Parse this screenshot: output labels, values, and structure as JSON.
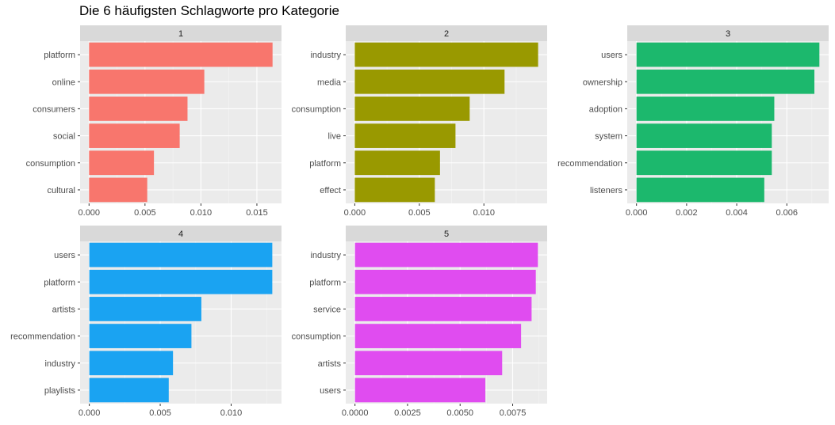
{
  "title": "Die 6 häufigsten Schlagworte pro Kategorie",
  "chart_data": {
    "type": "bar",
    "orientation": "horizontal",
    "facet_layout": "3 columns x 2 rows",
    "grid": true,
    "legend": "none",
    "panels": [
      {
        "label": "1",
        "color": "#F8766D",
        "categories": [
          "platform",
          "online",
          "consumers",
          "social",
          "consumption",
          "cultural"
        ],
        "values": [
          0.0164,
          0.0103,
          0.0088,
          0.0081,
          0.0058,
          0.0052
        ],
        "xlim": [
          -0.0008,
          0.0172
        ],
        "xticks": [
          0,
          0.005,
          0.01,
          0.015
        ],
        "xtick_labels": [
          "0.000",
          "0.005",
          "0.010",
          "0.015"
        ]
      },
      {
        "label": "2",
        "color": "#999900",
        "categories": [
          "industry",
          "media",
          "consumption",
          "live",
          "platform",
          "effect"
        ],
        "values": [
          0.0142,
          0.0116,
          0.0089,
          0.0078,
          0.0066,
          0.0062
        ],
        "xlim": [
          -0.0007,
          0.0149
        ],
        "xticks": [
          0,
          0.005,
          0.01
        ],
        "xtick_labels": [
          "0.000",
          "0.005",
          "0.010"
        ]
      },
      {
        "label": "3",
        "color": "#1CB86D",
        "categories": [
          "users",
          "ownership",
          "adoption",
          "system",
          "recommendation",
          "listeners"
        ],
        "values": [
          0.0073,
          0.0071,
          0.0055,
          0.0054,
          0.0054,
          0.0051
        ],
        "xlim": [
          -0.00037,
          0.00767
        ],
        "xticks": [
          0,
          0.002,
          0.004,
          0.006
        ],
        "xtick_labels": [
          "0.000",
          "0.002",
          "0.004",
          "0.006"
        ]
      },
      {
        "label": "4",
        "color": "#1AA3F2",
        "categories": [
          "users",
          "platform",
          "artists",
          "recommendation",
          "industry",
          "playlists"
        ],
        "values": [
          0.0129,
          0.0129,
          0.0079,
          0.0072,
          0.0059,
          0.0056
        ],
        "xlim": [
          -0.00065,
          0.01355
        ],
        "xticks": [
          0,
          0.005,
          0.01
        ],
        "xtick_labels": [
          "0.000",
          "0.005",
          "0.010"
        ]
      },
      {
        "label": "5",
        "color": "#E04CF0",
        "categories": [
          "industry",
          "platform",
          "service",
          "consumption",
          "artists",
          "users"
        ],
        "values": [
          0.0087,
          0.0086,
          0.0084,
          0.0079,
          0.007,
          0.0062
        ],
        "xlim": [
          -0.00044,
          0.00914
        ],
        "xticks": [
          0,
          0.0025,
          0.005,
          0.0075
        ],
        "xtick_labels": [
          "0.0000",
          "0.0025",
          "0.0050",
          "0.0075"
        ]
      }
    ]
  }
}
